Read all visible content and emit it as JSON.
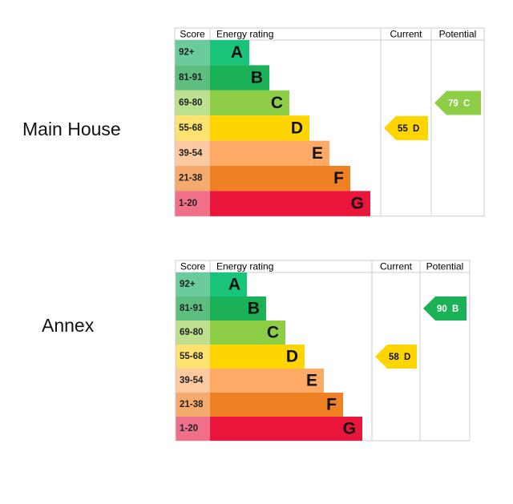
{
  "properties": [
    {
      "name": "Main House",
      "headers": {
        "score": "Score",
        "rating": "Energy rating",
        "current": "Current",
        "potential": "Potential"
      },
      "bands": [
        {
          "score": "92+",
          "letter": "A",
          "color": "#19c37a",
          "score_color": "#6bcb9c"
        },
        {
          "score": "81-91",
          "letter": "B",
          "color": "#1bb157",
          "score_color": "#5ebd80"
        },
        {
          "score": "69-80",
          "letter": "C",
          "color": "#8dce46",
          "score_color": "#bde08f"
        },
        {
          "score": "55-68",
          "letter": "D",
          "color": "#ffd500",
          "score_color": "#fde270"
        },
        {
          "score": "39-54",
          "letter": "E",
          "color": "#fcaa65",
          "score_color": "#fcc9a0"
        },
        {
          "score": "21-38",
          "letter": "F",
          "color": "#ef8023",
          "score_color": "#f5ab6e"
        },
        {
          "score": "1-20",
          "letter": "G",
          "color": "#e9153b",
          "score_color": "#ef7088"
        }
      ],
      "current": {
        "value": "55",
        "letter": "D"
      },
      "potential": {
        "value": "79",
        "letter": "C"
      }
    },
    {
      "name": "Annex",
      "headers": {
        "score": "Score",
        "rating": "Energy rating",
        "current": "Current",
        "potential": "Potential"
      },
      "bands": [
        {
          "score": "92+",
          "letter": "A",
          "color": "#19c37a",
          "score_color": "#6bcb9c"
        },
        {
          "score": "81-91",
          "letter": "B",
          "color": "#1bb157",
          "score_color": "#5ebd80"
        },
        {
          "score": "69-80",
          "letter": "C",
          "color": "#8dce46",
          "score_color": "#bde08f"
        },
        {
          "score": "55-68",
          "letter": "D",
          "color": "#ffd500",
          "score_color": "#fde270"
        },
        {
          "score": "39-54",
          "letter": "E",
          "color": "#fcaa65",
          "score_color": "#fcc9a0"
        },
        {
          "score": "21-38",
          "letter": "F",
          "color": "#ef8023",
          "score_color": "#f5ab6e"
        },
        {
          "score": "1-20",
          "letter": "G",
          "color": "#e9153b",
          "score_color": "#ef7088"
        }
      ],
      "current": {
        "value": "58",
        "letter": "D"
      },
      "potential": {
        "value": "90",
        "letter": "B"
      }
    }
  ]
}
